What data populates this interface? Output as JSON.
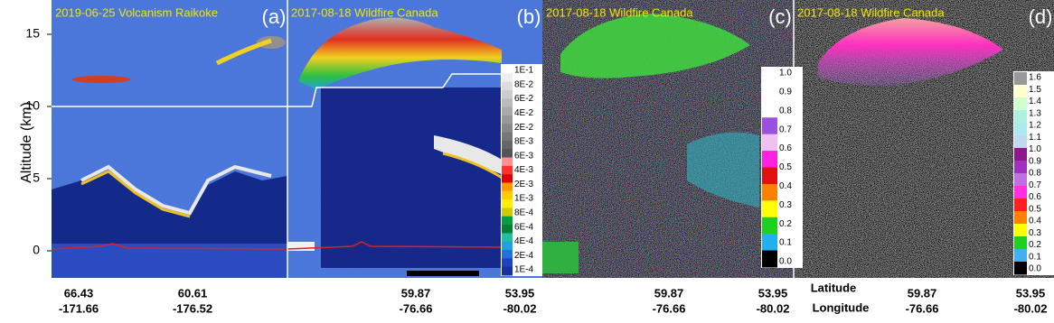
{
  "y_axis": {
    "label": "Altitude (km)",
    "ticks": [
      15,
      10,
      5,
      0
    ]
  },
  "x_axis_names": {
    "lat": "Latitude",
    "lon": "Longitude"
  },
  "panels": [
    {
      "title": "2019-06-25  Volcanism Raikoke",
      "letter": "(a)",
      "x_labels": [
        {
          "lat": "66.43",
          "lon": "-171.66"
        },
        {
          "lat": "60.61",
          "lon": "-176.52"
        }
      ]
    },
    {
      "title": "2017-08-18  Wildfire Canada",
      "letter": "(b)",
      "x_labels": [
        {
          "lat": "59.87",
          "lon": "-76.66"
        },
        {
          "lat": "53.95",
          "lon": "-80.02"
        }
      ]
    },
    {
      "title": "2017-08-18  Wildfire Canada",
      "letter": "(c)",
      "x_labels": [
        {
          "lat": "59.87",
          "lon": "-76.66"
        },
        {
          "lat": "53.95",
          "lon": "-80.02"
        }
      ]
    },
    {
      "title": "2017-08-18  Wildfire Canada",
      "letter": "(d)",
      "x_labels": [
        {
          "lat": "59.87",
          "lon": "-76.66"
        },
        {
          "lat": "53.95",
          "lon": "-80.02"
        }
      ]
    }
  ],
  "colorbars": [
    {
      "labels": [
        "1E-1",
        "8E-2",
        "6E-2",
        "4E-2",
        "2E-2",
        "8E-3",
        "6E-3",
        "4E-3",
        "2E-3",
        "1E-3",
        "8E-4",
        "6E-4",
        "4E-4",
        "2E-4",
        "1E-4"
      ]
    },
    {
      "labels": [
        "1.0",
        "0.9",
        "0.8",
        "0.7",
        "0.6",
        "0.5",
        "0.4",
        "0.3",
        "0.2",
        "0.1",
        "0.0"
      ]
    },
    {
      "labels": [
        "1.6",
        "1.5",
        "1.4",
        "1.3",
        "1.2",
        "1.1",
        "1.0",
        "0.9",
        "0.8",
        "0.7",
        "0.6",
        "0.5",
        "0.4",
        "0.3",
        "0.2",
        "0.1",
        "0.0"
      ]
    }
  ]
}
